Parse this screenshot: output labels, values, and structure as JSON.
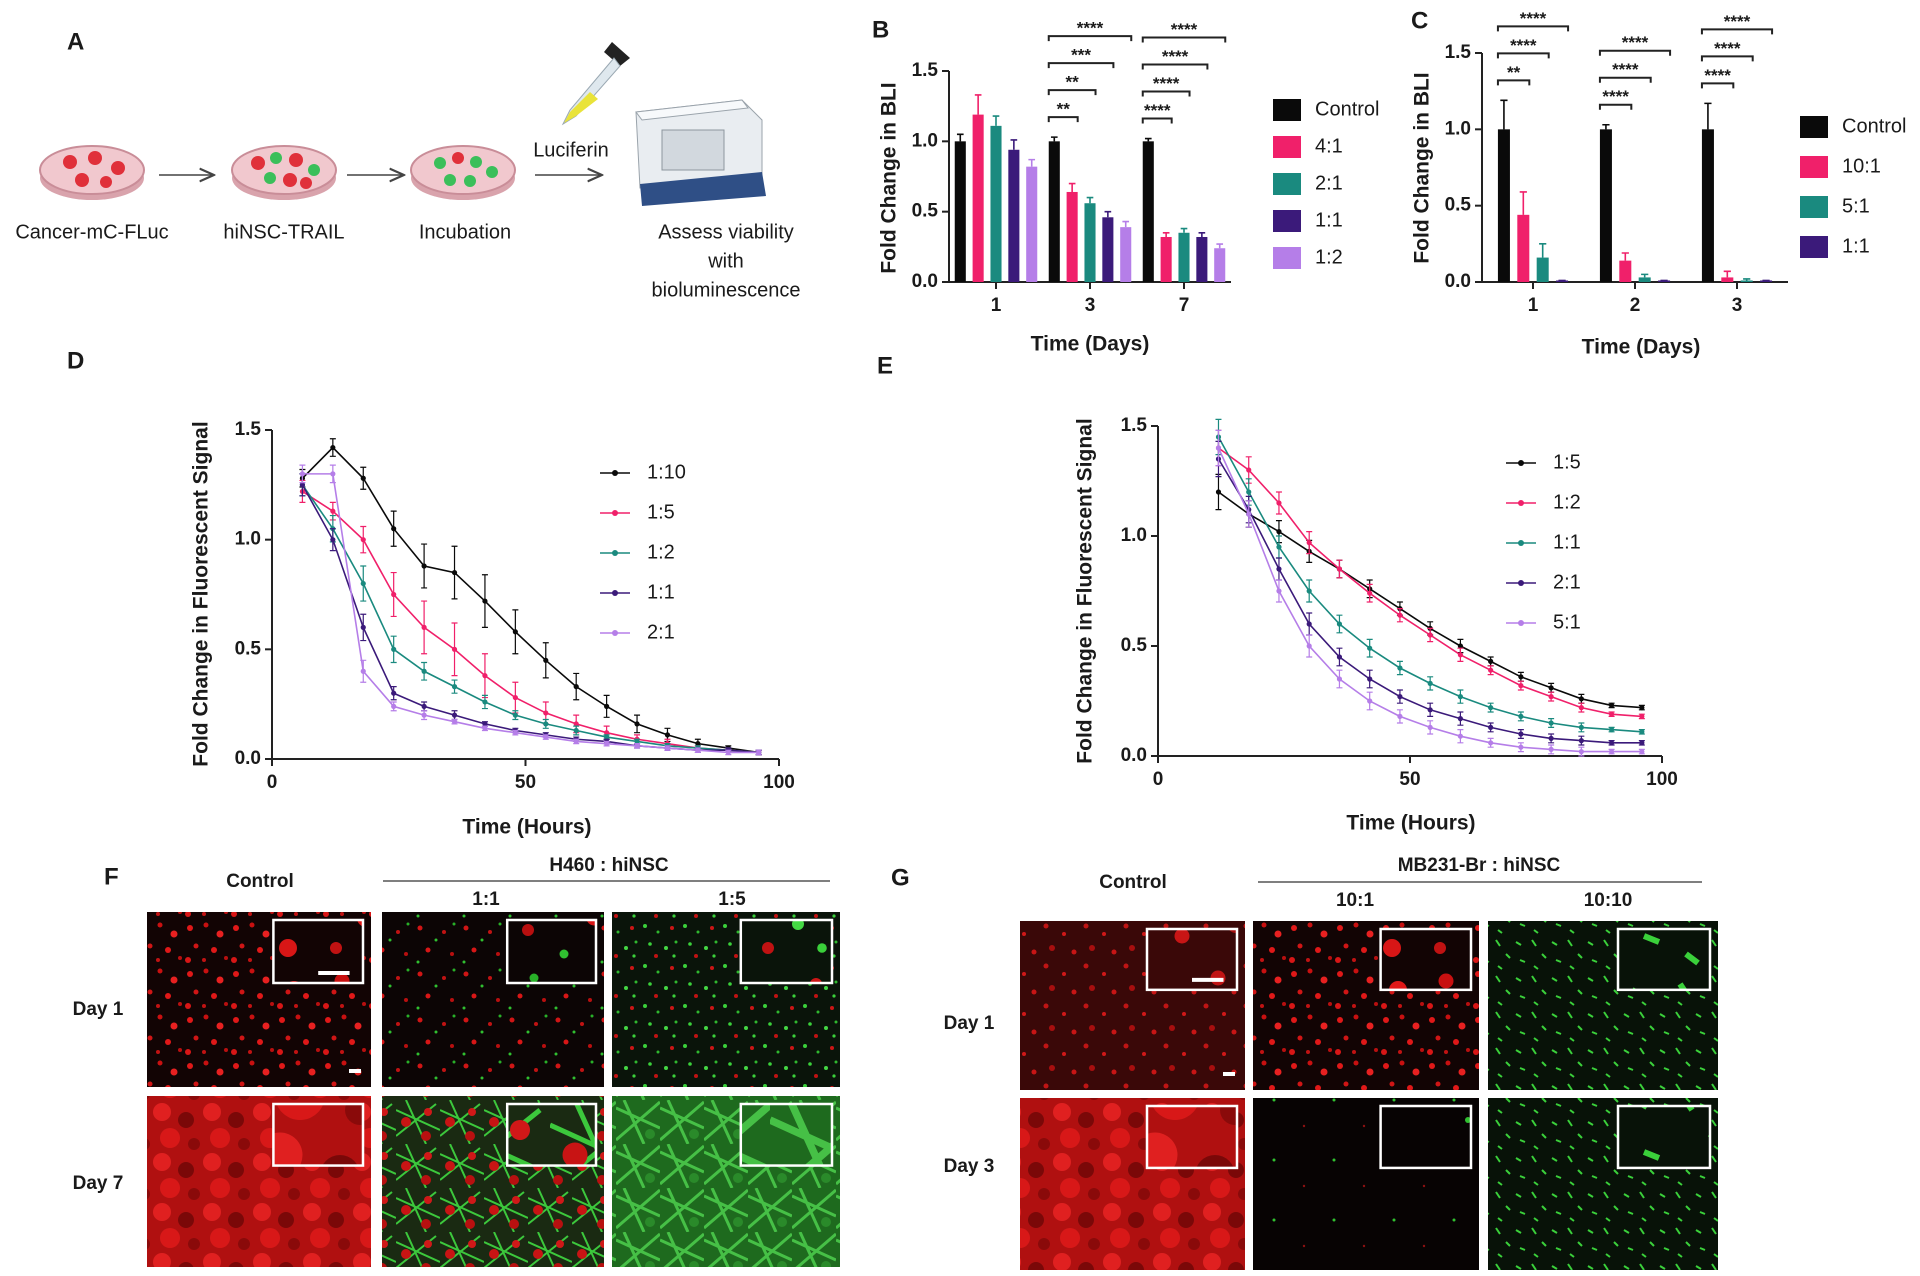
{
  "panel_a": {
    "label": "A",
    "steps": [
      "Cancer-mC-FLuc",
      "hiNSC-TRAIL",
      "Incubation"
    ],
    "reagent": "Luciferin",
    "readout": [
      "Assess viability",
      "with",
      "bioluminescence"
    ]
  },
  "chart_data": [
    {
      "type": "bar",
      "label": "B",
      "xlabel": "Time (Days)",
      "ylabel": "Fold Change in BLI",
      "categories": [
        "1",
        "3",
        "7"
      ],
      "ylim": [
        0,
        1.5
      ],
      "yticks": [
        {
          "value": 0,
          "label": "0.0"
        },
        0.5,
        {
          "value": 1,
          "label": "1.0"
        },
        1.5
      ],
      "series": [
        {
          "name": "Control",
          "color": "#0a0a0a",
          "values": [
            1.0,
            1.0,
            1.0
          ],
          "errors": [
            0.05,
            0.03,
            0.02
          ]
        },
        {
          "name": "4:1",
          "color": "#f0206a",
          "values": [
            1.19,
            0.64,
            0.32
          ],
          "errors": [
            0.14,
            0.06,
            0.03
          ],
          "significance": [
            null,
            "**",
            "****"
          ]
        },
        {
          "name": "2:1",
          "color": "#1a8a7f",
          "values": [
            1.11,
            0.56,
            0.35
          ],
          "errors": [
            0.07,
            0.04,
            0.03
          ],
          "significance": [
            null,
            "**",
            "****"
          ]
        },
        {
          "name": "1:1",
          "color": "#3b1a7a",
          "values": [
            0.94,
            0.46,
            0.32
          ],
          "errors": [
            0.07,
            0.04,
            0.03
          ],
          "significance": [
            null,
            "***",
            "****"
          ]
        },
        {
          "name": "1:2",
          "color": "#b57ee8",
          "values": [
            0.82,
            0.39,
            0.24
          ],
          "errors": [
            0.05,
            0.04,
            0.03
          ],
          "significance": [
            null,
            "****",
            "****"
          ]
        }
      ]
    },
    {
      "type": "bar",
      "label": "C",
      "xlabel": "Time (Days)",
      "ylabel": "Fold Change in BLI",
      "categories": [
        "1",
        "2",
        "3"
      ],
      "ylim": [
        0,
        1.5
      ],
      "yticks": [
        {
          "value": 0,
          "label": "0.0"
        },
        0.5,
        {
          "value": 1,
          "label": "1.0"
        },
        1.5
      ],
      "series": [
        {
          "name": "Control",
          "color": "#0a0a0a",
          "values": [
            1.0,
            1.0,
            1.0
          ],
          "errors": [
            0.19,
            0.03,
            0.17
          ]
        },
        {
          "name": "10:1",
          "color": "#f0206a",
          "values": [
            0.44,
            0.14,
            0.03
          ],
          "errors": [
            0.15,
            0.05,
            0.04
          ],
          "significance": [
            "**",
            "****",
            "****"
          ]
        },
        {
          "name": "5:1",
          "color": "#1a8a7f",
          "values": [
            0.16,
            0.03,
            0.01
          ],
          "errors": [
            0.09,
            0.02,
            0.01
          ],
          "significance": [
            "****",
            "****",
            "****"
          ]
        },
        {
          "name": "1:1",
          "color": "#3b1a7a",
          "values": [
            0.01,
            0.01,
            0.01
          ],
          "errors": [
            0,
            0,
            0
          ],
          "significance": [
            "****",
            "****",
            "****"
          ]
        }
      ]
    },
    {
      "type": "line",
      "label": "D",
      "xlabel": "Time (Hours)",
      "ylabel": "Fold Change in Fluorescent Signal",
      "x": [
        6,
        12,
        18,
        24,
        30,
        36,
        42,
        48,
        54,
        60,
        66,
        72,
        78,
        84,
        90,
        96
      ],
      "xlim": [
        0,
        100
      ],
      "xticks": [
        0,
        50,
        100
      ],
      "ylim": [
        0,
        1.5
      ],
      "yticks": [
        {
          "value": 0,
          "label": "0.0"
        },
        0.5,
        {
          "value": 1,
          "label": "1.0"
        },
        1.5
      ],
      "series": [
        {
          "name": "1:10",
          "color": "#0a0a0a",
          "values": [
            1.28,
            1.42,
            1.28,
            1.05,
            0.88,
            0.85,
            0.72,
            0.58,
            0.45,
            0.33,
            0.24,
            0.16,
            0.11,
            0.07,
            0.05,
            0.03
          ],
          "errors": [
            0.04,
            0.04,
            0.05,
            0.08,
            0.1,
            0.12,
            0.12,
            0.1,
            0.08,
            0.06,
            0.05,
            0.04,
            0.03,
            0.02,
            0.01,
            0.01
          ]
        },
        {
          "name": "1:5",
          "color": "#f0206a",
          "values": [
            1.22,
            1.13,
            1.0,
            0.75,
            0.6,
            0.5,
            0.38,
            0.28,
            0.21,
            0.16,
            0.12,
            0.09,
            0.07,
            0.05,
            0.04,
            0.03
          ],
          "errors": [
            0.05,
            0.04,
            0.06,
            0.1,
            0.12,
            0.12,
            0.1,
            0.07,
            0.05,
            0.04,
            0.03,
            0.02,
            0.02,
            0.01,
            0.01,
            0.01
          ]
        },
        {
          "name": "1:2",
          "color": "#1a8a7f",
          "values": [
            1.25,
            1.05,
            0.8,
            0.5,
            0.4,
            0.33,
            0.26,
            0.2,
            0.16,
            0.13,
            0.1,
            0.08,
            0.06,
            0.05,
            0.04,
            0.03
          ],
          "errors": [
            0.05,
            0.06,
            0.08,
            0.06,
            0.04,
            0.03,
            0.03,
            0.02,
            0.02,
            0.02,
            0.01,
            0.01,
            0.01,
            0.01,
            0.01,
            0.01
          ]
        },
        {
          "name": "1:1",
          "color": "#3b1a7a",
          "values": [
            1.25,
            1.0,
            0.6,
            0.3,
            0.24,
            0.2,
            0.16,
            0.13,
            0.11,
            0.09,
            0.08,
            0.06,
            0.05,
            0.04,
            0.04,
            0.03
          ],
          "errors": [
            0.05,
            0.05,
            0.06,
            0.03,
            0.02,
            0.02,
            0.01,
            0.01,
            0.01,
            0.01,
            0.01,
            0.01,
            0.01,
            0.01,
            0.01,
            0.01
          ]
        },
        {
          "name": "2:1",
          "color": "#b57ee8",
          "values": [
            1.3,
            1.3,
            0.4,
            0.24,
            0.2,
            0.17,
            0.14,
            0.12,
            0.1,
            0.08,
            0.07,
            0.06,
            0.05,
            0.04,
            0.03,
            0.03
          ],
          "errors": [
            0.04,
            0.04,
            0.05,
            0.02,
            0.02,
            0.01,
            0.01,
            0.01,
            0.01,
            0.01,
            0.01,
            0.01,
            0.01,
            0.01,
            0.01,
            0.01
          ]
        }
      ]
    },
    {
      "type": "line",
      "label": "E",
      "xlabel": "Time (Hours)",
      "ylabel": "Fold Change in Fluorescent Signal",
      "x": [
        12,
        18,
        24,
        30,
        36,
        42,
        48,
        54,
        60,
        66,
        72,
        78,
        84,
        90,
        96
      ],
      "xlim": [
        0,
        100
      ],
      "xticks": [
        0,
        50,
        100
      ],
      "ylim": [
        0,
        1.5
      ],
      "yticks": [
        {
          "value": 0,
          "label": "0.0"
        },
        0.5,
        {
          "value": 1,
          "label": "1.0"
        },
        1.5
      ],
      "series": [
        {
          "name": "1:5",
          "color": "#0a0a0a",
          "values": [
            1.2,
            1.1,
            1.02,
            0.93,
            0.85,
            0.76,
            0.67,
            0.58,
            0.5,
            0.43,
            0.36,
            0.31,
            0.26,
            0.23,
            0.22
          ],
          "errors": [
            0.08,
            0.06,
            0.05,
            0.05,
            0.04,
            0.04,
            0.03,
            0.03,
            0.03,
            0.02,
            0.02,
            0.02,
            0.02,
            0.01,
            0.01
          ]
        },
        {
          "name": "1:2",
          "color": "#f0206a",
          "values": [
            1.4,
            1.3,
            1.15,
            0.97,
            0.85,
            0.74,
            0.64,
            0.55,
            0.46,
            0.39,
            0.32,
            0.27,
            0.22,
            0.19,
            0.18
          ],
          "errors": [
            0.08,
            0.06,
            0.05,
            0.05,
            0.04,
            0.04,
            0.03,
            0.03,
            0.03,
            0.02,
            0.02,
            0.02,
            0.02,
            0.01,
            0.01
          ]
        },
        {
          "name": "1:1",
          "color": "#1a8a7f",
          "values": [
            1.45,
            1.2,
            0.95,
            0.75,
            0.6,
            0.49,
            0.4,
            0.33,
            0.27,
            0.22,
            0.18,
            0.15,
            0.13,
            0.12,
            0.11
          ],
          "errors": [
            0.08,
            0.06,
            0.05,
            0.05,
            0.04,
            0.04,
            0.03,
            0.03,
            0.03,
            0.02,
            0.02,
            0.02,
            0.02,
            0.01,
            0.01
          ]
        },
        {
          "name": "2:1",
          "color": "#3b1a7a",
          "values": [
            1.35,
            1.12,
            0.85,
            0.6,
            0.45,
            0.35,
            0.27,
            0.21,
            0.17,
            0.13,
            0.1,
            0.08,
            0.07,
            0.06,
            0.06
          ],
          "errors": [
            0.08,
            0.06,
            0.05,
            0.05,
            0.04,
            0.04,
            0.03,
            0.03,
            0.03,
            0.02,
            0.02,
            0.02,
            0.02,
            0.01,
            0.01
          ]
        },
        {
          "name": "5:1",
          "color": "#b57ee8",
          "values": [
            1.4,
            1.1,
            0.75,
            0.5,
            0.35,
            0.25,
            0.18,
            0.13,
            0.09,
            0.06,
            0.04,
            0.03,
            0.02,
            0.02,
            0.02
          ],
          "errors": [
            0.08,
            0.06,
            0.05,
            0.05,
            0.04,
            0.04,
            0.03,
            0.03,
            0.03,
            0.02,
            0.02,
            0.02,
            0.02,
            0.01,
            0.01
          ]
        }
      ]
    }
  ],
  "panel_f": {
    "label": "F",
    "group_label": "H460 : hiNSC",
    "columns": [
      "Control",
      "1:1",
      "1:5"
    ],
    "rows": [
      "Day 1",
      "Day 7"
    ]
  },
  "panel_g": {
    "label": "G",
    "group_label": "MB231-Br : hiNSC",
    "columns": [
      "Control",
      "10:1",
      "10:10"
    ],
    "rows": [
      "Day 1",
      "Day 3"
    ]
  }
}
